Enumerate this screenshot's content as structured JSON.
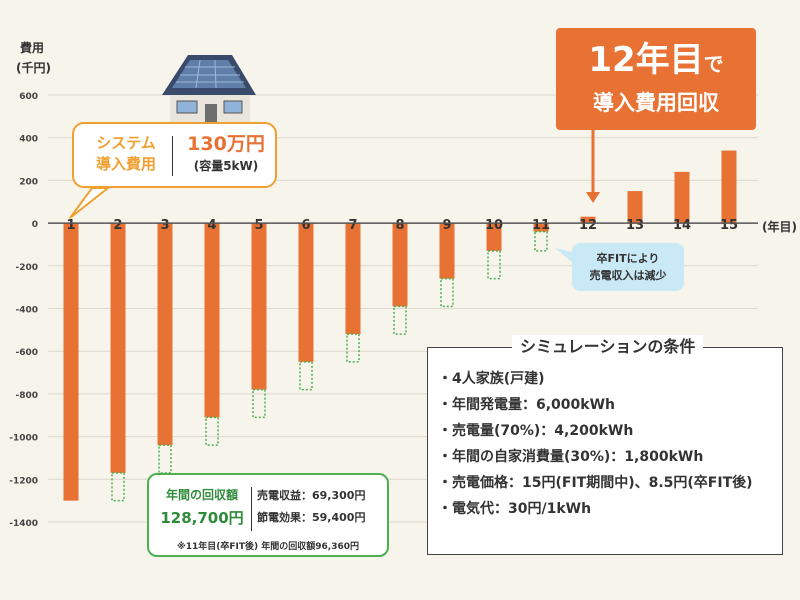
{
  "chart_data": {
    "type": "bar",
    "ylabel_line1": "費用",
    "ylabel_line2": "(千円)",
    "xlabel": "(年目)",
    "ylim": [
      -1400,
      600
    ],
    "yticks": [
      "600",
      "400",
      "200",
      "0",
      "-200",
      "-400",
      "-600",
      "-800",
      "-1000",
      "-1200",
      "-1400"
    ],
    "ytick_values": [
      600,
      400,
      200,
      0,
      -200,
      -400,
      -600,
      -800,
      -1000,
      -1200,
      -1400
    ],
    "categories": [
      "1",
      "2",
      "3",
      "4",
      "5",
      "6",
      "7",
      "8",
      "9",
      "10",
      "11",
      "12",
      "13",
      "14",
      "15"
    ],
    "values": [
      -1300,
      -1170,
      -1040,
      -910,
      -780,
      -650,
      -520,
      -390,
      -260,
      -130,
      -40,
      30,
      150,
      240,
      340
    ],
    "dotted_values": [
      null,
      -1300,
      -1170,
      -1040,
      -910,
      -780,
      -650,
      -520,
      -390,
      -260,
      -130,
      null,
      null,
      null,
      null
    ],
    "colors": {
      "bar": "#e87234",
      "dotted": "#4caf50",
      "grid": "#ddd8cc",
      "axis": "#555555"
    }
  },
  "system_box": {
    "label_line1": "システム",
    "label_line2": "導入費用",
    "amount": "130万円",
    "capacity": "(容量5kW)"
  },
  "payback_box": {
    "line1_num": "12年目",
    "line1_suffix": "で",
    "line2": "導入費用回収"
  },
  "fit_note": {
    "line1": "卒FITにより",
    "line2": "売電収入は減少"
  },
  "annual_box": {
    "title": "年間の回収額",
    "amount": "128,700円",
    "row1": "売電収益：69,300円",
    "row2": "節電効果：59,400円",
    "note": "※11年目(卒FIT後) 年間の回収額96,360円"
  },
  "conditions": {
    "title": "シミュレーションの条件",
    "items": [
      "・4人家族(戸建)",
      "・年間発電量：6,000kWh",
      "・売電量(70%)：4,200kWh",
      "・年間の自家消費量(30%)：1,800kWh",
      "・売電価格：15円(FIT期間中)、8.5円(卒FIT後)",
      "・電気代：30円/1kWh"
    ]
  }
}
